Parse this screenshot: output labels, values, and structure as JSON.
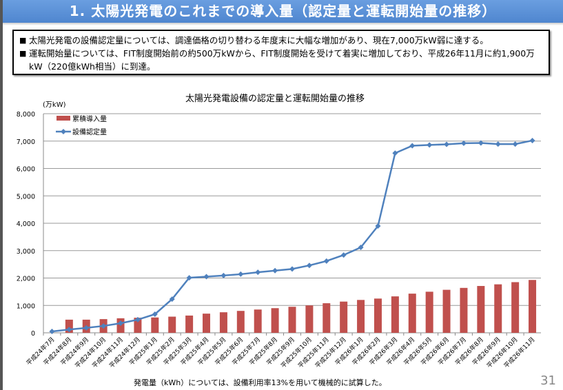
{
  "header": {
    "title": "1. 太陽光発電のこれまでの導入量（認定量と運転開始量の推移）"
  },
  "summary": {
    "bullet_icon": "black-square",
    "bullets": [
      "太陽光発電の設備認定量については、調達価格の切り替わる年度末に大幅な増加があり、現在7,000万kW弱に達する。",
      "運転開始量については、FIT制度開始前の約500万kWから、FIT制度開始を受けて着実に増加しており、平成26年11月に約1,900万kW（220億kWh相当）に到達。"
    ]
  },
  "chart_data": {
    "type": "bar+line",
    "title": "太陽光発電設備の認定量と運転開始量の推移",
    "ylabel": "(万kW)",
    "ylim": [
      0,
      8000
    ],
    "yticks": [
      "0",
      "1,000",
      "2,000",
      "3,000",
      "4,000",
      "5,000",
      "6,000",
      "7,000",
      "8,000"
    ],
    "grid": true,
    "legend_position": "top-left",
    "categories": [
      "平成24年7月",
      "平成24年8月",
      "平成24年9月",
      "平成24年10月",
      "平成24年11月",
      "平成24年12月",
      "平成25年1月",
      "平成25年2月",
      "平成25年3月",
      "平成25年4月",
      "平成25年5月",
      "平成25年6月",
      "平成25年7月",
      "平成25年8月",
      "平成25年9月",
      "平成25年10月",
      "平成25年11月",
      "平成25年12月",
      "平成26年1月",
      "平成26年2月",
      "平成26年3月",
      "平成26年4月",
      "平成26年5月",
      "平成26年6月",
      "平成26年7月",
      "平成26年8月",
      "平成26年9月",
      "平成26年10月",
      "平成26年11月"
    ],
    "series": [
      {
        "name": "累積導入量",
        "type": "bar",
        "color": "#c0504d",
        "values": [
          0,
          480,
          480,
          500,
          530,
          550,
          560,
          590,
          630,
          700,
          750,
          800,
          850,
          900,
          950,
          1000,
          1080,
          1140,
          1200,
          1250,
          1330,
          1430,
          1500,
          1570,
          1640,
          1710,
          1770,
          1850,
          1930
        ]
      },
      {
        "name": "設備認定量",
        "type": "line",
        "color": "#4f81bd",
        "values": [
          50,
          120,
          180,
          250,
          350,
          480,
          680,
          1230,
          2010,
          2050,
          2090,
          2140,
          2210,
          2270,
          2330,
          2460,
          2620,
          2840,
          3120,
          3900,
          6560,
          6830,
          6860,
          6880,
          6920,
          6930,
          6890,
          6890,
          7020
        ]
      }
    ]
  },
  "footnote": "発電量（kWh）については、設備利用率13%を用いて機械的に試算した。",
  "page_number": "31"
}
